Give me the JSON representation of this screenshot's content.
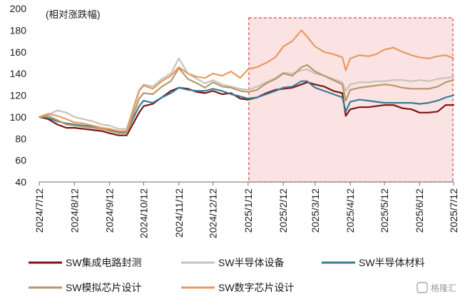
{
  "chart_data": {
    "type": "line",
    "unit_label": "(相对涨跌幅)",
    "ylim": [
      40,
      200
    ],
    "yticks": [
      40,
      60,
      80,
      100,
      120,
      140,
      160,
      180,
      200
    ],
    "x_tick_labels": [
      "2024/7/12",
      "2024/8/12",
      "2024/9/12",
      "2024/10/12",
      "2024/11/12",
      "2024/12/12",
      "2025/1/12",
      "2025/2/12",
      "2025/3/12",
      "2025/4/12",
      "2025/5/12",
      "2025/6/12",
      "2025/7/12"
    ],
    "grid": false,
    "legend_position": "bottom",
    "highlight_region": {
      "from": "2025/1/12",
      "to": "2025/7/12",
      "color": "#fbe3e3",
      "border_color": "#d94040"
    },
    "x": [
      "2024/7/12",
      "2024/7/20",
      "2024/7/28",
      "2024/8/5",
      "2024/8/12",
      "2024/8/20",
      "2024/8/28",
      "2024/9/5",
      "2024/9/12",
      "2024/9/20",
      "2024/9/27",
      "2024/10/8",
      "2024/10/12",
      "2024/10/20",
      "2024/10/28",
      "2024/11/5",
      "2024/11/12",
      "2024/11/20",
      "2024/11/28",
      "2024/12/5",
      "2024/12/12",
      "2024/12/20",
      "2024/12/28",
      "2025/1/5",
      "2025/1/12",
      "2025/1/20",
      "2025/1/28",
      "2025/2/5",
      "2025/2/12",
      "2025/2/20",
      "2025/2/28",
      "2025/3/5",
      "2025/3/12",
      "2025/3/20",
      "2025/3/28",
      "2025/4/5",
      "2025/4/8",
      "2025/4/12",
      "2025/4/20",
      "2025/4/28",
      "2025/5/5",
      "2025/5/12",
      "2025/5/20",
      "2025/5/28",
      "2025/6/5",
      "2025/6/12",
      "2025/6/20",
      "2025/6/28",
      "2025/7/5",
      "2025/7/12"
    ],
    "series": [
      {
        "name": "SW集成电路封测",
        "color": "#7a1414",
        "values": [
          100,
          98,
          93,
          90,
          90,
          89,
          88,
          87,
          85,
          83,
          83,
          104,
          110,
          112,
          118,
          124,
          127,
          126,
          123,
          122,
          124,
          121,
          122,
          117,
          116,
          118,
          122,
          125,
          126,
          127,
          130,
          132,
          130,
          128,
          124,
          122,
          101,
          107,
          109,
          109,
          110,
          111,
          111,
          108,
          107,
          104,
          104,
          105,
          111,
          111
        ]
      },
      {
        "name": "SW半导体设备",
        "color": "#c7c3b7",
        "values": [
          100,
          102,
          106,
          104,
          100,
          98,
          96,
          93,
          92,
          89,
          89,
          125,
          130,
          128,
          135,
          140,
          154,
          140,
          135,
          131,
          134,
          130,
          128,
          126,
          125,
          128,
          132,
          136,
          141,
          140,
          143,
          144,
          140,
          138,
          135,
          132,
          124,
          130,
          132,
          132,
          133,
          133,
          134,
          134,
          133,
          134,
          133,
          135,
          136,
          137
        ]
      },
      {
        "name": "SW半导体材料",
        "color": "#3a7b94",
        "values": [
          100,
          99,
          96,
          94,
          93,
          92,
          91,
          89,
          88,
          86,
          86,
          110,
          115,
          113,
          118,
          122,
          127,
          125,
          124,
          124,
          126,
          124,
          121,
          119,
          117,
          118,
          121,
          124,
          127,
          128,
          133,
          133,
          127,
          124,
          121,
          118,
          105,
          114,
          116,
          115,
          114,
          113,
          113,
          113,
          113,
          112,
          113,
          115,
          118,
          120
        ]
      },
      {
        "name": "SW模拟芯片设计",
        "color": "#b5996a",
        "values": [
          100,
          101,
          97,
          93,
          92,
          91,
          90,
          89,
          87,
          85,
          85,
          117,
          122,
          121,
          128,
          133,
          145,
          135,
          131,
          127,
          132,
          128,
          127,
          124,
          123,
          125,
          131,
          135,
          140,
          138,
          146,
          148,
          142,
          138,
          134,
          130,
          115,
          125,
          127,
          128,
          129,
          130,
          129,
          127,
          126,
          126,
          126,
          128,
          132,
          134
        ]
      },
      {
        "name": "SW数字芯片设计",
        "color": "#e59b62",
        "values": [
          100,
          103,
          101,
          98,
          95,
          94,
          92,
          90,
          89,
          87,
          87,
          124,
          129,
          126,
          133,
          138,
          146,
          140,
          137,
          136,
          140,
          138,
          142,
          136,
          144,
          146,
          150,
          155,
          165,
          170,
          180,
          174,
          165,
          160,
          158,
          155,
          143,
          154,
          157,
          156,
          158,
          162,
          164,
          160,
          157,
          155,
          154,
          156,
          157,
          154
        ]
      }
    ]
  },
  "watermark": "格隆汇"
}
